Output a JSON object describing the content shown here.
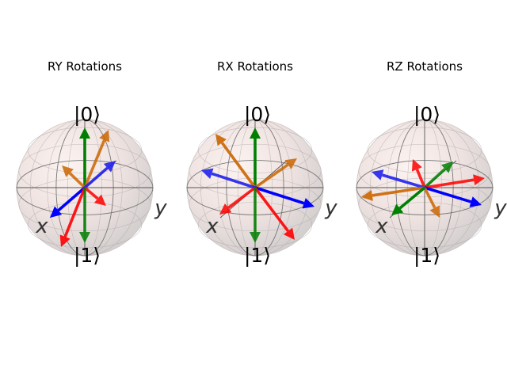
{
  "panels": [
    {
      "title": "RY Rotations",
      "labels": {
        "ket0": "|0⟩",
        "ket1": "|1⟩",
        "x": "x",
        "y": "y"
      },
      "vectors": [
        {
          "color": "#008000",
          "opacity": 1.0,
          "dx": 0,
          "dy": -76
        },
        {
          "color": "#cc6600",
          "opacity": 0.85,
          "dx": 30,
          "dy": -73
        },
        {
          "color": "#cc6600",
          "opacity": 0.85,
          "dx": -29,
          "dy": -28
        },
        {
          "color": "#2222ee",
          "opacity": 0.9,
          "dx": 39,
          "dy": -34
        },
        {
          "color": "#0000ff",
          "opacity": 1.0,
          "dx": -44,
          "dy": 38
        },
        {
          "color": "#ff0000",
          "opacity": 0.9,
          "dx": -30,
          "dy": 75
        },
        {
          "color": "#ff0000",
          "opacity": 0.85,
          "dx": 27,
          "dy": 23
        },
        {
          "color": "#008000",
          "opacity": 0.85,
          "dx": 0,
          "dy": 70
        }
      ]
    },
    {
      "title": "RX Rotations",
      "labels": {
        "ket0": "|0⟩",
        "ket1": "|1⟩",
        "x": "x",
        "y": "y"
      },
      "vectors": [
        {
          "color": "#008000",
          "opacity": 1.0,
          "dx": 0,
          "dy": -76
        },
        {
          "color": "#cc6600",
          "opacity": 0.9,
          "dx": -50,
          "dy": -68
        },
        {
          "color": "#cc6600",
          "opacity": 0.85,
          "dx": 53,
          "dy": -37
        },
        {
          "color": "#2222ee",
          "opacity": 0.9,
          "dx": -68,
          "dy": -22
        },
        {
          "color": "#0000ff",
          "opacity": 1.0,
          "dx": 75,
          "dy": 24
        },
        {
          "color": "#ff0000",
          "opacity": 0.85,
          "dx": -45,
          "dy": 34
        },
        {
          "color": "#ff0000",
          "opacity": 0.9,
          "dx": 50,
          "dy": 66
        },
        {
          "color": "#008000",
          "opacity": 0.85,
          "dx": 0,
          "dy": 70
        }
      ]
    },
    {
      "title": "RZ Rotations",
      "labels": {
        "ket0": "|0⟩",
        "ket1": "|1⟩",
        "x": "x",
        "y": "y"
      },
      "vectors": [
        {
          "color": "#ff0000",
          "opacity": 0.85,
          "dx": -15,
          "dy": -36
        },
        {
          "color": "#008000",
          "opacity": 0.85,
          "dx": 36,
          "dy": -33
        },
        {
          "color": "#ff0000",
          "opacity": 0.85,
          "dx": 76,
          "dy": -12
        },
        {
          "color": "#2222ee",
          "opacity": 0.9,
          "dx": -67,
          "dy": -20
        },
        {
          "color": "#0000ff",
          "opacity": 1.0,
          "dx": 72,
          "dy": 22
        },
        {
          "color": "#cc6600",
          "opacity": 0.9,
          "dx": -80,
          "dy": 12
        },
        {
          "color": "#cc6600",
          "opacity": 0.85,
          "dx": 19,
          "dy": 38
        },
        {
          "color": "#008000",
          "opacity": 1.0,
          "dx": -42,
          "dy": 35
        }
      ]
    }
  ]
}
